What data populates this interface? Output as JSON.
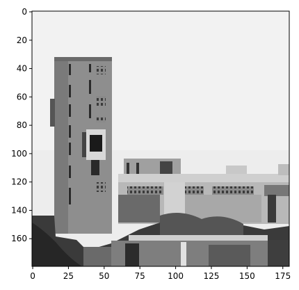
{
  "image": {
    "description_hidden": "",
    "colormap": "gray"
  },
  "axes": {
    "x_ticks": [
      0,
      25,
      50,
      75,
      100,
      125,
      150,
      175
    ],
    "y_ticks": [
      0,
      20,
      40,
      60,
      80,
      100,
      120,
      140,
      160
    ],
    "x_range": [
      -0.5,
      179.5
    ],
    "y_range": [
      179.5,
      -0.5
    ],
    "frame_color": "#000000"
  },
  "chart_data": {
    "type": "heatmap",
    "title": "",
    "xlabel": "",
    "ylabel": "",
    "xlim": [
      -0.5,
      179.5
    ],
    "ylim": [
      179.5,
      -0.5
    ],
    "x_ticks": [
      0,
      25,
      50,
      75,
      100,
      125,
      150,
      175
    ],
    "y_ticks": [
      0,
      20,
      40,
      60,
      80,
      100,
      120,
      140,
      160
    ],
    "grid": false,
    "legend": "none"
  }
}
